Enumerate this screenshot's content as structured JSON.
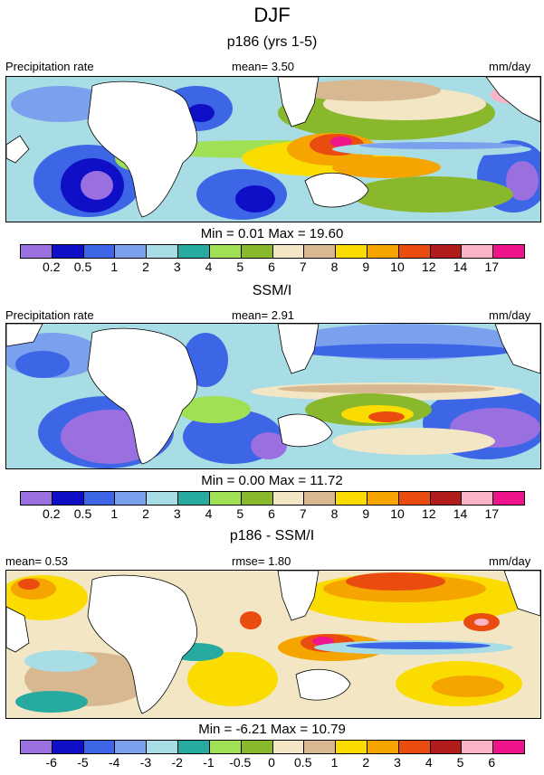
{
  "figure": {
    "title": "DJF",
    "units_label": "mm/day"
  },
  "panels": [
    {
      "subtitle": "p186 (yrs 1-5)",
      "left_label": "Precipitation rate",
      "center_label": "mean=   3.50",
      "right_label": "mm/day",
      "minmax": "Min =   0.01 Max =  19.60",
      "colorbar_ticks": [
        "0.2",
        "0.5",
        "1",
        "2",
        "3",
        "4",
        "5",
        "6",
        "7",
        "8",
        "9",
        "10",
        "12",
        "14",
        "17"
      ]
    },
    {
      "subtitle": "SSM/I",
      "left_label": "Precipitation rate",
      "center_label": "mean=   2.91",
      "right_label": "mm/day",
      "minmax": "Min =   0.00 Max =  11.72",
      "colorbar_ticks": [
        "0.2",
        "0.5",
        "1",
        "2",
        "3",
        "4",
        "5",
        "6",
        "7",
        "8",
        "9",
        "10",
        "12",
        "14",
        "17"
      ]
    },
    {
      "subtitle": "p186 - SSM/I",
      "left_label": "mean=   0.53",
      "center_label": "rmse=   1.80",
      "right_label": "mm/day",
      "minmax": "Min =  -6.21 Max =  10.79",
      "colorbar_ticks": [
        "-6",
        "-5",
        "-4",
        "-3",
        "-2",
        "-1",
        "-0.5",
        "0",
        "0.5",
        "1",
        "2",
        "3",
        "4",
        "5",
        "6"
      ]
    }
  ],
  "palette": [
    "#9a6fe0",
    "#0f0fc8",
    "#3d66e6",
    "#7aa0ee",
    "#a8dde6",
    "#27aaa0",
    "#a0e054",
    "#8ab82c",
    "#f2e6c4",
    "#d8b890",
    "#fbdc00",
    "#f5a400",
    "#ea4c10",
    "#b01c1c",
    "#fab4c8",
    "#f0148c"
  ]
}
